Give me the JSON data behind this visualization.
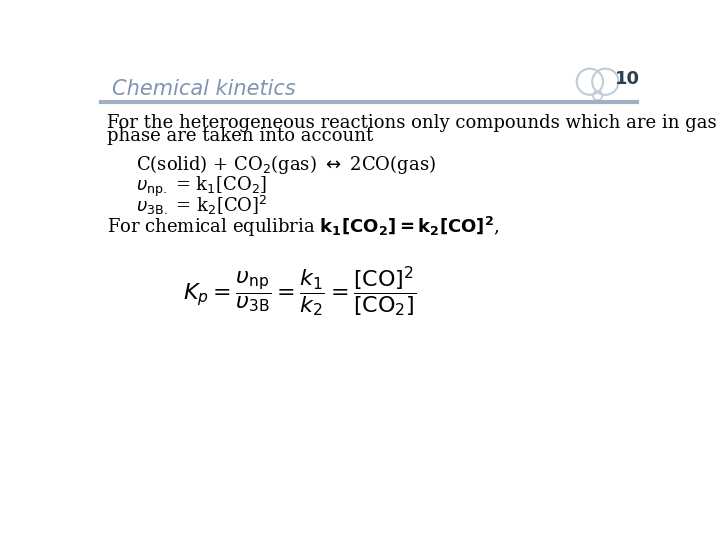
{
  "title": "Chemical kinetics",
  "slide_number": "10",
  "bg_color": "#ffffff",
  "title_color": "#7f96b2",
  "title_fontsize": 15,
  "header_line_color": "#a0b0c0",
  "text_color": "#000000",
  "body_line1": "For the heterogeneous reactions only compounds which are in gas",
  "body_line2": "phase are taken into account",
  "body_fontsize": 13,
  "circles_color": "#c0cdd8"
}
